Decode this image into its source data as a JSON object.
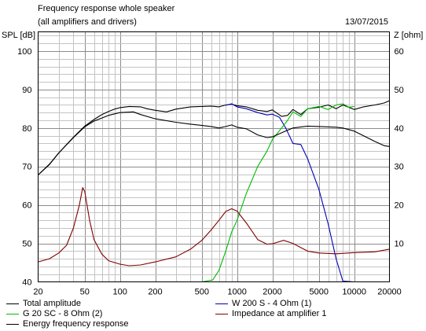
{
  "header": {
    "title": "Frequency response whole speaker",
    "subtitle": "(all amplifiers and drivers)",
    "date": "13/07/2015"
  },
  "chart_data": {
    "type": "line",
    "title": "Frequency response whole speaker",
    "subtitle": "(all amplifiers and drivers)",
    "xlabel": "",
    "ylabel": "SPL [dB]",
    "y2label": "Z [ohm]",
    "xscale": "log",
    "xlim": [
      20,
      20000
    ],
    "ylim": [
      40,
      105
    ],
    "y2lim": [
      0,
      65
    ],
    "grid": true,
    "legend_position": "bottom",
    "x_ticks": [
      20,
      50,
      100,
      200,
      500,
      1000,
      2000,
      5000,
      10000,
      20000
    ],
    "x_tick_labels": [
      "20",
      "50",
      "100",
      "200",
      "500",
      "1000",
      "2000",
      "5000",
      "10000",
      "20000"
    ],
    "y_ticks": [
      40,
      50,
      60,
      70,
      80,
      90,
      100
    ],
    "y_tick_labels": [
      "40",
      "50",
      "60",
      "70",
      "80",
      "90",
      "100"
    ],
    "y2_ticks": [
      10,
      20,
      30,
      40,
      50,
      60
    ],
    "y2_tick_labels": [
      "10",
      "20",
      "30",
      "40",
      "50",
      "60"
    ],
    "series": [
      {
        "name": "Total amplitude",
        "axis": "left",
        "color": "#000000",
        "points": [
          [
            20,
            67.8
          ],
          [
            25,
            70.6
          ],
          [
            30,
            73.5
          ],
          [
            40,
            77.6
          ],
          [
            50,
            80.5
          ],
          [
            60,
            82.2
          ],
          [
            70,
            83.5
          ],
          [
            80,
            84.3
          ],
          [
            90,
            84.9
          ],
          [
            100,
            85.3
          ],
          [
            120,
            85.6
          ],
          [
            150,
            85.5
          ],
          [
            170,
            85
          ],
          [
            200,
            84.6
          ],
          [
            250,
            84.2
          ],
          [
            300,
            84.9
          ],
          [
            400,
            85.5
          ],
          [
            500,
            85.6
          ],
          [
            600,
            85.7
          ],
          [
            700,
            85.5
          ],
          [
            800,
            86
          ],
          [
            900,
            86.2
          ],
          [
            1000,
            85.8
          ],
          [
            1200,
            85.5
          ],
          [
            1500,
            84.6
          ],
          [
            1800,
            84.3
          ],
          [
            2000,
            84.7
          ],
          [
            2400,
            83
          ],
          [
            2700,
            83.3
          ],
          [
            3000,
            84.8
          ],
          [
            3500,
            83.5
          ],
          [
            4000,
            85
          ],
          [
            5000,
            85.4
          ],
          [
            6000,
            86
          ],
          [
            7000,
            85
          ],
          [
            8000,
            86
          ],
          [
            10000,
            84.8
          ],
          [
            12000,
            85.5
          ],
          [
            15000,
            86
          ],
          [
            18000,
            86.5
          ],
          [
            20000,
            87.1
          ]
        ]
      },
      {
        "name": "W 200 S - 4 Ohm (1)",
        "axis": "left",
        "color": "#0000bb",
        "points": [
          [
            800,
            85.9
          ],
          [
            900,
            86.3
          ],
          [
            1000,
            85.5
          ],
          [
            1200,
            85
          ],
          [
            1500,
            84
          ],
          [
            1800,
            83.4
          ],
          [
            2000,
            83.6
          ],
          [
            2300,
            82.8
          ],
          [
            2600,
            80
          ],
          [
            3000,
            76
          ],
          [
            3500,
            75.7
          ],
          [
            4000,
            72
          ],
          [
            5000,
            64
          ],
          [
            6000,
            55
          ],
          [
            7000,
            46
          ],
          [
            8000,
            40.2
          ],
          [
            10000,
            40
          ],
          [
            20000,
            40
          ]
        ]
      },
      {
        "name": "G 20 SC - 8 Ohm (2)",
        "axis": "left",
        "color": "#00bb00",
        "points": [
          [
            20,
            40
          ],
          [
            500,
            40
          ],
          [
            620,
            40.5
          ],
          [
            700,
            43
          ],
          [
            800,
            48
          ],
          [
            900,
            53
          ],
          [
            1000,
            56
          ],
          [
            1200,
            63
          ],
          [
            1500,
            70
          ],
          [
            1800,
            74
          ],
          [
            2000,
            77
          ],
          [
            2400,
            80
          ],
          [
            2700,
            82
          ],
          [
            3000,
            84.2
          ],
          [
            3500,
            83
          ],
          [
            4000,
            85
          ],
          [
            5000,
            85.6
          ],
          [
            6000,
            84.8
          ],
          [
            7000,
            86
          ],
          [
            8000,
            86.3
          ],
          [
            9000,
            85.4
          ],
          [
            10000,
            85.6
          ]
        ]
      },
      {
        "name": "Impedance at amplifier 1",
        "axis": "right",
        "color": "#800000",
        "points": [
          [
            20,
            5.2
          ],
          [
            25,
            6
          ],
          [
            30,
            7.5
          ],
          [
            35,
            9.5
          ],
          [
            40,
            14
          ],
          [
            45,
            20
          ],
          [
            48,
            24.5
          ],
          [
            50,
            23.5
          ],
          [
            55,
            16
          ],
          [
            60,
            11
          ],
          [
            70,
            7.2
          ],
          [
            80,
            5.5
          ],
          [
            100,
            4.6
          ],
          [
            120,
            4.2
          ],
          [
            150,
            4.4
          ],
          [
            200,
            5.2
          ],
          [
            300,
            6.5
          ],
          [
            400,
            8.5
          ],
          [
            500,
            10.8
          ],
          [
            600,
            13.5
          ],
          [
            700,
            16
          ],
          [
            800,
            18.3
          ],
          [
            900,
            19
          ],
          [
            1000,
            18.4
          ],
          [
            1200,
            15.3
          ],
          [
            1500,
            11
          ],
          [
            1800,
            9.8
          ],
          [
            2000,
            9.9
          ],
          [
            2500,
            10.8
          ],
          [
            3000,
            10
          ],
          [
            4000,
            8
          ],
          [
            5000,
            7.5
          ],
          [
            7000,
            7.3
          ],
          [
            10000,
            7.6
          ],
          [
            15000,
            7.8
          ],
          [
            20000,
            8.5
          ]
        ]
      },
      {
        "name": "Energy frequency response",
        "axis": "left",
        "color": "#000000",
        "points": [
          [
            20,
            67.8
          ],
          [
            25,
            70.5
          ],
          [
            30,
            73.5
          ],
          [
            40,
            77.5
          ],
          [
            50,
            80.3
          ],
          [
            60,
            81.8
          ],
          [
            70,
            82.6
          ],
          [
            80,
            83.3
          ],
          [
            100,
            84
          ],
          [
            130,
            84.2
          ],
          [
            150,
            83.5
          ],
          [
            200,
            82.4
          ],
          [
            300,
            81.5
          ],
          [
            400,
            81
          ],
          [
            600,
            80.4
          ],
          [
            700,
            80
          ],
          [
            800,
            80.4
          ],
          [
            900,
            80.8
          ],
          [
            1000,
            80.2
          ],
          [
            1200,
            79.8
          ],
          [
            1500,
            78.2
          ],
          [
            1800,
            77.5
          ],
          [
            2000,
            77.7
          ],
          [
            2500,
            79
          ],
          [
            3000,
            80
          ],
          [
            4000,
            80.5
          ],
          [
            5000,
            80.4
          ],
          [
            7000,
            80.2
          ],
          [
            8000,
            80
          ],
          [
            10000,
            79.2
          ],
          [
            12000,
            78
          ],
          [
            15000,
            76.5
          ],
          [
            18000,
            75.4
          ],
          [
            20000,
            75.2
          ]
        ]
      }
    ]
  }
}
